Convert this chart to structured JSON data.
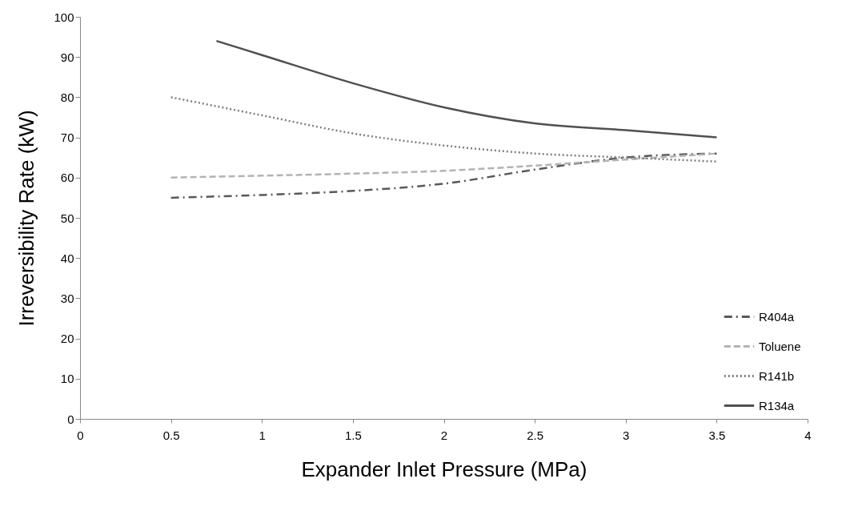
{
  "chart_data": {
    "type": "line",
    "xlabel": "Expander Inlet Pressure (MPa)",
    "ylabel": "Irreversibility Rate (kW)",
    "x": [
      0.5,
      1,
      1.5,
      2,
      2.5,
      3,
      3.5
    ],
    "series": [
      {
        "name": "R404a",
        "color": "#595959",
        "line_style": "dashdot",
        "values": [
          55,
          55.7,
          56.7,
          58.5,
          62,
          65,
          66
        ]
      },
      {
        "name": "Toluene",
        "color": "#b3b3b3",
        "line_style": "dashed",
        "values": [
          60,
          60.5,
          61,
          61.7,
          63,
          64.5,
          66
        ]
      },
      {
        "name": "R141b",
        "color": "#7f7f7f",
        "line_style": "dotted",
        "values": [
          80,
          75.5,
          71,
          68,
          66,
          65,
          64
        ]
      },
      {
        "name": "R134a",
        "color": "#505050",
        "line_style": "solid",
        "x": [
          0.75,
          1,
          1.5,
          2,
          2.5,
          3,
          3.5
        ],
        "values": [
          94,
          90.5,
          83.5,
          77.5,
          73.5,
          71.8,
          70
        ]
      }
    ],
    "xlim": [
      0,
      4
    ],
    "xticks": [
      0,
      0.5,
      1,
      1.5,
      2,
      2.5,
      3,
      3.5,
      4
    ],
    "ylim": [
      0,
      100
    ],
    "yticks": [
      0,
      10,
      20,
      30,
      40,
      50,
      60,
      70,
      80,
      90,
      100
    ],
    "grid": false,
    "legend": "bottom right",
    "marker": "none"
  }
}
